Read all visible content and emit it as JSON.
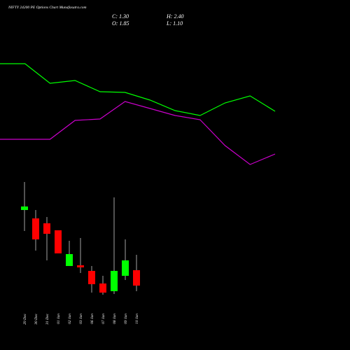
{
  "chart_data": [
    {
      "type": "candlestick",
      "title": "NIFTY 24200  PE Options  Chart Munafasutra.com",
      "annotations": [
        "C: 1.30",
        "H: 2.40",
        "O: 1.85",
        "L: 1.10"
      ],
      "categories": [
        "29 Dec",
        "30 Dec",
        "31 Dec",
        "01 Jan",
        "02 Jan",
        "03 Jan",
        "06 Jan",
        "07 Jan",
        "08 Jan",
        "09 Jan",
        "10 Jan"
      ],
      "open": [
        4.0,
        3.7,
        3.525,
        3.275,
        2.0,
        2.025,
        1.825,
        1.375,
        1.1,
        1.65,
        1.85
      ],
      "high": [
        5.0,
        4.0,
        3.75,
        3.275,
        2.9,
        3.0,
        2.0,
        1.65,
        4.45,
        2.95,
        2.4
      ],
      "low": [
        3.25,
        2.55,
        2.2,
        2.45,
        2.0,
        1.75,
        1.05,
        0.975,
        1.0,
        1.5,
        1.1
      ],
      "close": [
        4.125,
        2.95,
        3.15,
        2.45,
        2.425,
        1.95,
        1.35,
        1.05,
        1.825,
        2.2,
        1.3
      ],
      "up_color": "#00ff00",
      "down_color": "#ff0000",
      "ylim": [
        -1.0,
        11.5
      ]
    },
    {
      "type": "line",
      "series": [
        {
          "color": "#00ff00",
          "values": [
            409,
            409,
            381,
            385,
            369,
            368,
            357,
            342,
            335,
            353,
            363,
            341
          ]
        },
        {
          "color": "#cc00cc",
          "values": [
            301,
            301,
            301,
            328,
            330,
            355,
            345,
            335,
            329,
            292,
            265,
            280
          ]
        }
      ],
      "ylim": [
        0,
        500
      ]
    }
  ]
}
